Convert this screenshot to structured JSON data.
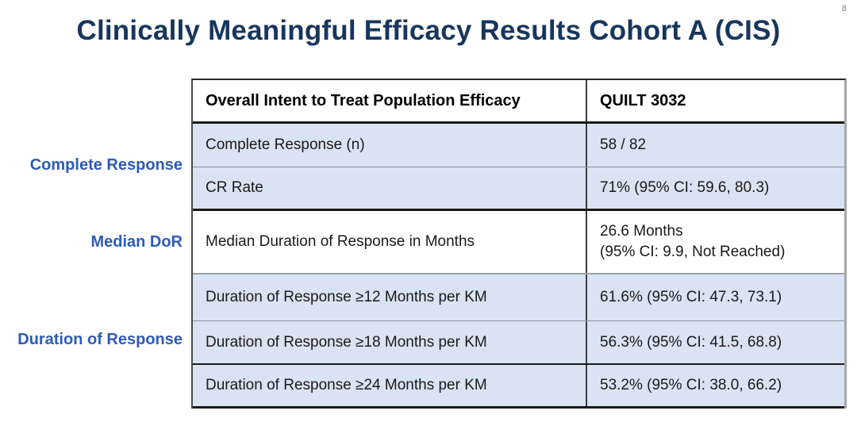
{
  "slide": {
    "title": "Clinically Meaningful Efficacy Results Cohort A (CIS)",
    "page_number": "8"
  },
  "side_labels": {
    "complete_response": "Complete Response",
    "median_dor": "Median DoR",
    "duration_of_response": "Duration of Response"
  },
  "table": {
    "header": {
      "metric": "Overall Intent to Treat Population Efficacy",
      "value": "QUILT 3032"
    },
    "rows": [
      {
        "metric": "Complete Response (n)",
        "value": "58 / 82"
      },
      {
        "metric": "CR Rate",
        "value": "71% (95% CI: 59.6, 80.3)"
      },
      {
        "metric": "Median Duration of Response in Months",
        "value": "26.6 Months\n(95% CI: 9.9, Not Reached)"
      },
      {
        "metric": "Duration of Response ≥12 Months per KM",
        "value": "61.6% (95% CI: 47.3, 73.1)"
      },
      {
        "metric": "Duration of Response ≥18 Months per KM",
        "value": "56.3% (95% CI: 41.5, 68.8)"
      },
      {
        "metric": "Duration of Response ≥24 Months per KM",
        "value": "53.2% (95% CI: 38.0, 66.2)"
      }
    ]
  },
  "colors": {
    "title_text": "#17365D",
    "side_label_text": "#2E5BB8",
    "row_fill": "#DAE3F4",
    "header_fill": "#FFFFFF",
    "dark_border": "#1A1A1A",
    "light_border": "#8A92A0",
    "page_number_text": "#6E87A0"
  }
}
